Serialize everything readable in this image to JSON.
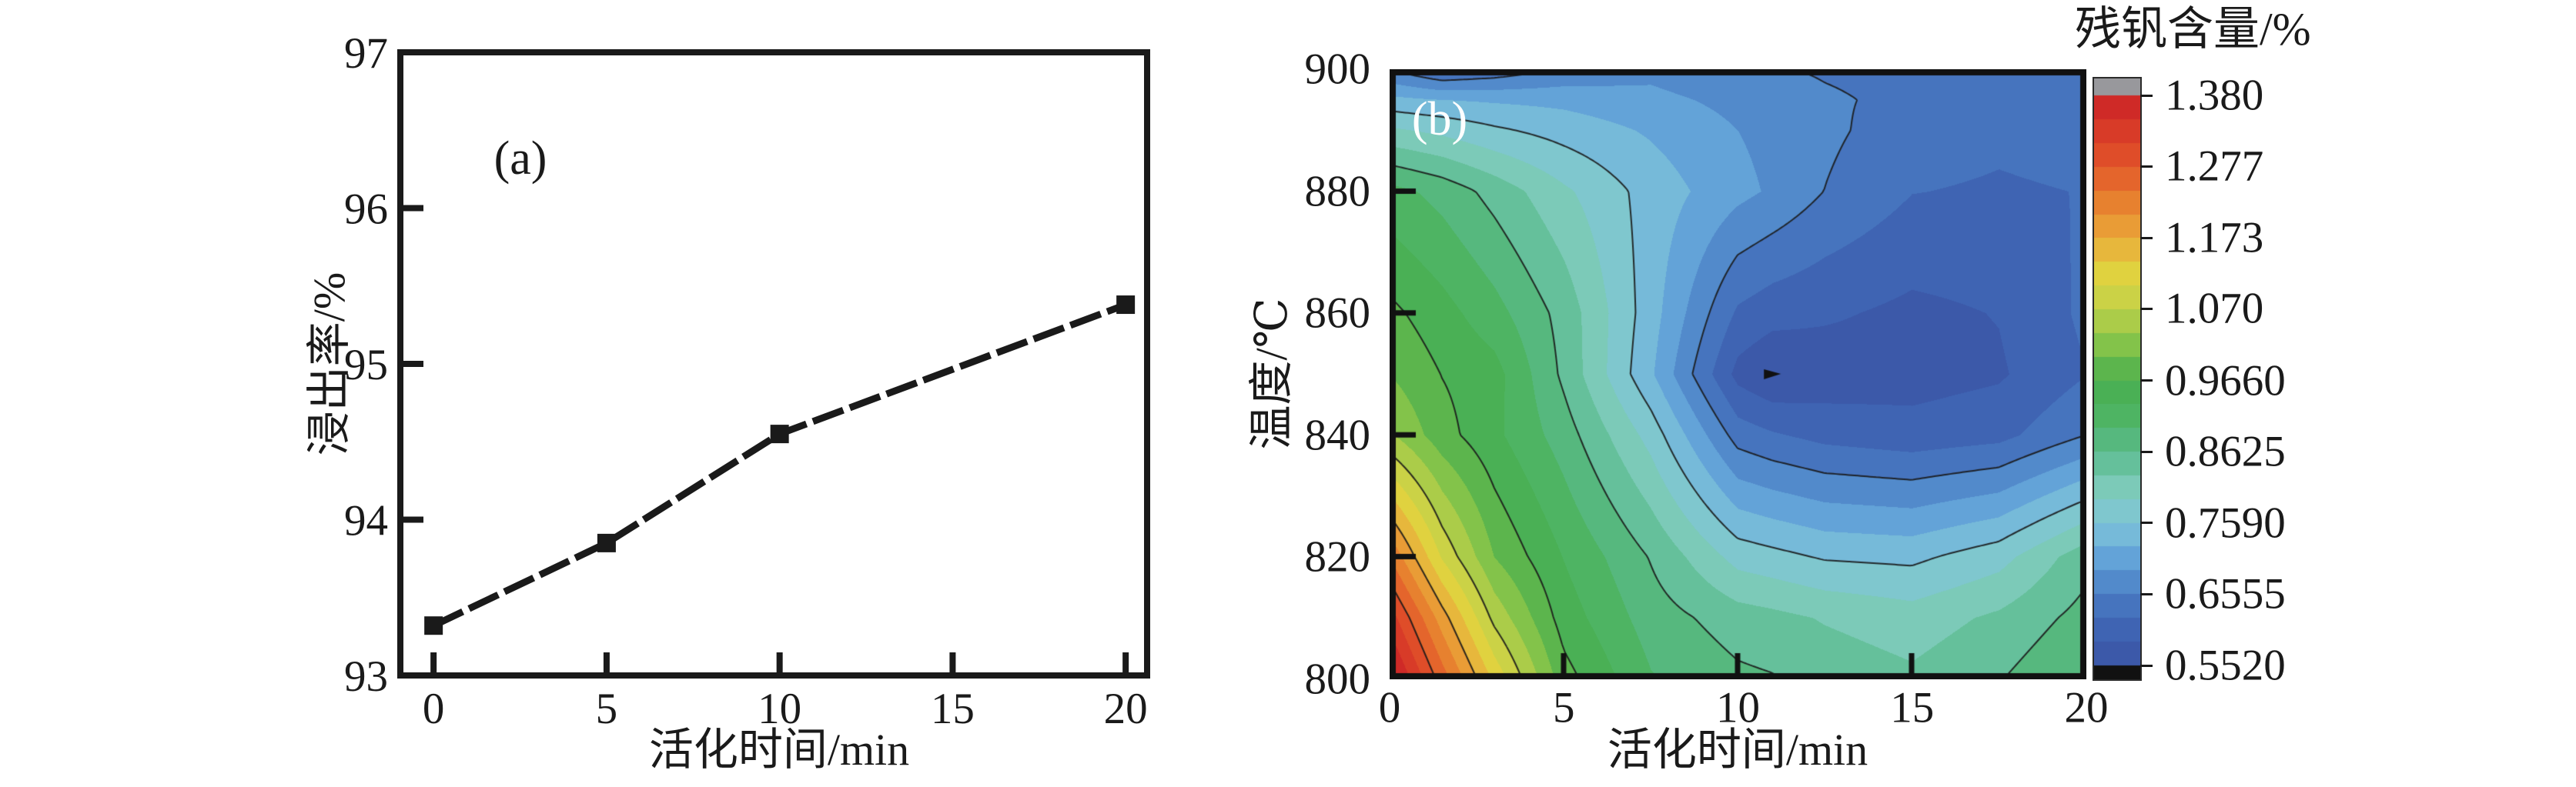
{
  "page": {
    "background": "#ffffff"
  },
  "chart_data": [
    {
      "id": "a",
      "type": "line",
      "panel_label": "(a)",
      "xlabel": "活化时间/min",
      "ylabel": "浸出率/%",
      "x": [
        0,
        5,
        10,
        20
      ],
      "y": [
        93.32,
        93.85,
        94.55,
        95.38
      ],
      "xlim": [
        -0.96,
        20.62
      ],
      "ylim": [
        93,
        97
      ],
      "x_tick_values": [
        0,
        5,
        10,
        15,
        20
      ],
      "x_tick_labels": [
        "0",
        "5",
        "10",
        "15",
        "20"
      ],
      "y_tick_values": [
        93,
        94,
        95,
        96,
        97
      ],
      "y_tick_labels": [
        "93",
        "94",
        "95",
        "96",
        "97"
      ],
      "y_ticks_with_marks": [
        94,
        95,
        96
      ],
      "marker": "square",
      "marker_size": 24,
      "line_color": "#1a1a1a",
      "line_width": 9,
      "line_dash": "42 9",
      "grid": false,
      "legend": "none"
    },
    {
      "id": "b",
      "type": "heatmap",
      "panel_label": "(b)",
      "xlabel": "活化时间/min",
      "ylabel": "温度/℃",
      "xlim": [
        0,
        20
      ],
      "ylim": [
        800,
        900
      ],
      "x_tick_values": [
        0,
        5,
        10,
        15,
        20
      ],
      "x_tick_labels": [
        "0",
        "5",
        "10",
        "15",
        "20"
      ],
      "y_tick_values": [
        800,
        820,
        840,
        860,
        880,
        900
      ],
      "y_tick_labels": [
        "800",
        "820",
        "840",
        "860",
        "880",
        "900"
      ],
      "grid_x": [
        0,
        1.5,
        3,
        5,
        7.5,
        10,
        11,
        12.5,
        15,
        17.5,
        20
      ],
      "grid_y": [
        800,
        810,
        820,
        840,
        850,
        860,
        880,
        890,
        895,
        900
      ],
      "values": [
        [
          1.4,
          1.26,
          1.13,
          0.98,
          0.9,
          0.87,
          0.865,
          0.85,
          0.835,
          0.86,
          0.9
        ],
        [
          1.33,
          1.19,
          1.06,
          0.95,
          0.88,
          0.845,
          0.838,
          0.825,
          0.81,
          0.835,
          0.875
        ],
        [
          1.24,
          1.1,
          1.0,
          0.93,
          0.86,
          0.78,
          0.77,
          0.755,
          0.75,
          0.78,
          0.85
        ],
        [
          1.04,
          0.98,
          0.94,
          0.88,
          0.78,
          0.64,
          0.625,
          0.61,
          0.6,
          0.61,
          0.655
        ],
        [
          1.0,
          0.965,
          0.945,
          0.855,
          0.73,
          0.575,
          0.553,
          0.565,
          0.572,
          0.582,
          0.62
        ],
        [
          0.975,
          0.945,
          0.91,
          0.85,
          0.74,
          0.615,
          0.6,
          0.592,
          0.578,
          0.588,
          0.628
        ],
        [
          0.91,
          0.885,
          0.85,
          0.8,
          0.745,
          0.7,
          0.685,
          0.655,
          0.622,
          0.617,
          0.622
        ],
        [
          0.8,
          0.785,
          0.765,
          0.745,
          0.72,
          0.69,
          0.68,
          0.663,
          0.638,
          0.628,
          0.635
        ],
        [
          0.735,
          0.725,
          0.72,
          0.715,
          0.7,
          0.68,
          0.672,
          0.66,
          0.648,
          0.64,
          0.65
        ],
        [
          0.655,
          0.615,
          0.63,
          0.66,
          0.68,
          0.66,
          0.658,
          0.652,
          0.645,
          0.638,
          0.648
        ]
      ],
      "minimum_marker": {
        "x": 11,
        "y": 850
      },
      "contour_line_levels": [
        0.6555,
        0.759,
        0.8625,
        0.966,
        1.07,
        1.173,
        1.277
      ],
      "colorbar": {
        "title": "残钒含量/%",
        "tick_labels": [
          "1.380",
          "1.277",
          "1.173",
          "1.070",
          "0.9660",
          "0.8625",
          "0.7590",
          "0.6555",
          "0.5520"
        ],
        "tick_values": [
          1.38,
          1.277,
          1.173,
          1.07,
          0.966,
          0.8625,
          0.759,
          0.6555,
          0.552
        ],
        "vmin": 0.552,
        "vmax": 1.38,
        "band_step": 0.0345,
        "bar_value_top": 1.4046,
        "bar_value_bottom": 0.5319,
        "under_color": "#111111",
        "over_color": "#98989c",
        "colormap": [
          [
            0.552,
            "#3a53a4"
          ],
          [
            0.605,
            "#3f64b3"
          ],
          [
            0.6555,
            "#4a7dc4"
          ],
          [
            0.71,
            "#64a5d9"
          ],
          [
            0.759,
            "#80c5d9"
          ],
          [
            0.81,
            "#7ccab9"
          ],
          [
            0.8625,
            "#5abb8d"
          ],
          [
            0.91,
            "#4eb465"
          ],
          [
            0.966,
            "#48ae4e"
          ],
          [
            1.02,
            "#86c44a"
          ],
          [
            1.07,
            "#c0d149"
          ],
          [
            1.12,
            "#e0d33f"
          ],
          [
            1.173,
            "#eaaa3a"
          ],
          [
            1.225,
            "#e7812f"
          ],
          [
            1.277,
            "#e2562a"
          ],
          [
            1.33,
            "#d83a28"
          ],
          [
            1.38,
            "#cb2127"
          ]
        ]
      }
    }
  ]
}
